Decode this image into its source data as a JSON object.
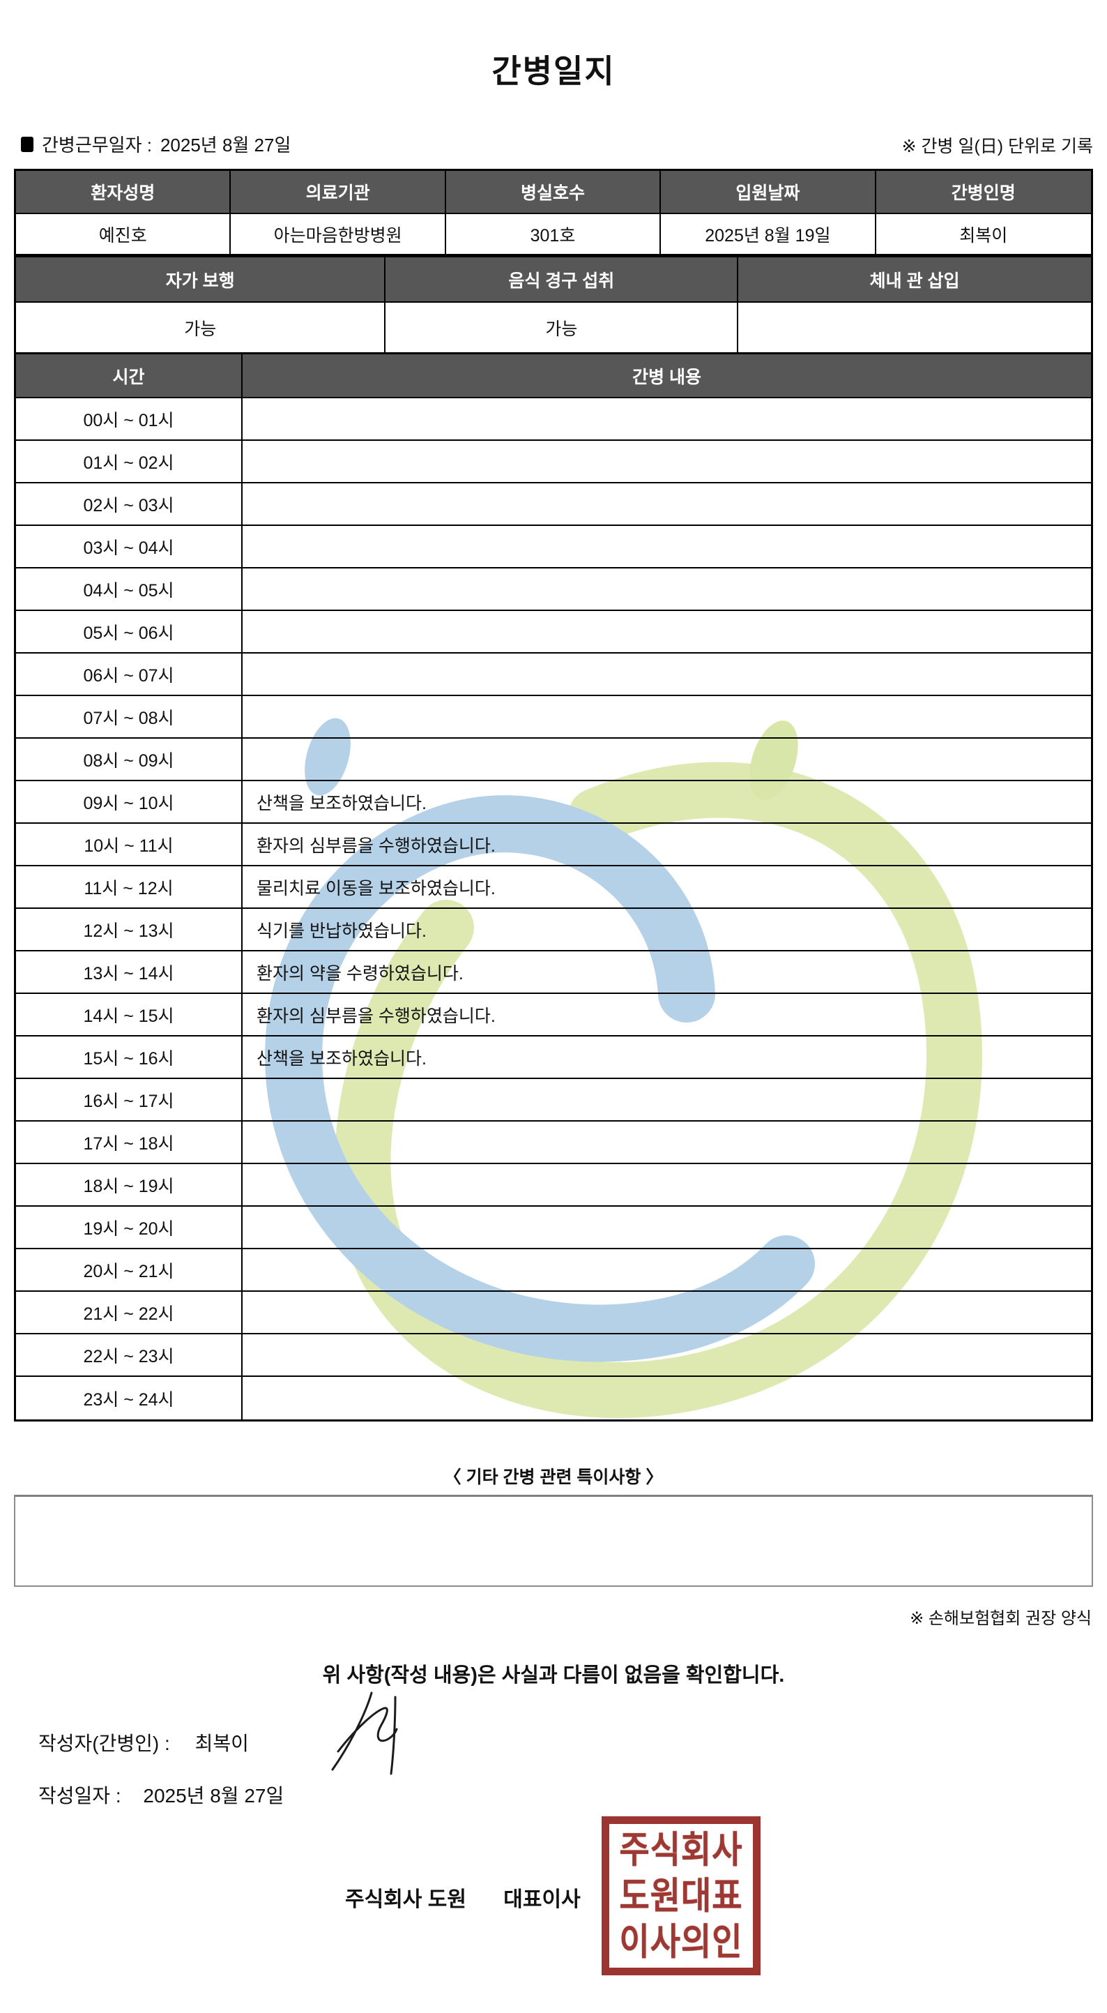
{
  "colors": {
    "header_bg": "#575757",
    "stamp_red": "#9e3832",
    "watermark_blue": "#b5d1e8",
    "watermark_green": "#dee9b2"
  },
  "header": {
    "title": "간병일지",
    "work_date_label": "간병근무일자  :",
    "work_date": "2025년 8월 27일",
    "unit_note": "※ 간병 일(日) 단위로 기록"
  },
  "patient_table": {
    "headers": [
      "환자성명",
      "의료기관",
      "병실호수",
      "입원날짜",
      "간병인명"
    ],
    "values": [
      "예진호",
      "아는마음한방병원",
      "301호",
      "2025년 8월 19일",
      "최복이"
    ]
  },
  "status_table": {
    "headers": [
      "자가 보행",
      "음식 경구 섭취",
      "체내 관 삽입"
    ],
    "values": [
      "가능",
      "가능",
      ""
    ]
  },
  "care_log": {
    "time_header": "시간",
    "content_header": "간병 내용",
    "rows": [
      {
        "time": "00시 ~ 01시",
        "content": ""
      },
      {
        "time": "01시 ~ 02시",
        "content": ""
      },
      {
        "time": "02시 ~ 03시",
        "content": ""
      },
      {
        "time": "03시 ~ 04시",
        "content": ""
      },
      {
        "time": "04시 ~ 05시",
        "content": ""
      },
      {
        "time": "05시 ~ 06시",
        "content": ""
      },
      {
        "time": "06시 ~ 07시",
        "content": ""
      },
      {
        "time": "07시 ~ 08시",
        "content": ""
      },
      {
        "time": "08시 ~ 09시",
        "content": ""
      },
      {
        "time": "09시 ~ 10시",
        "content": "산책을 보조하였습니다."
      },
      {
        "time": "10시 ~ 11시",
        "content": "환자의 심부름을 수행하였습니다."
      },
      {
        "time": "11시 ~ 12시",
        "content": "물리치료 이동을 보조하였습니다."
      },
      {
        "time": "12시 ~ 13시",
        "content": "식기를 반납하였습니다."
      },
      {
        "time": "13시 ~ 14시",
        "content": "환자의 약을 수령하였습니다."
      },
      {
        "time": "14시 ~ 15시",
        "content": "환자의 심부름을 수행하였습니다."
      },
      {
        "time": "15시 ~ 16시",
        "content": "산책을 보조하였습니다."
      },
      {
        "time": "16시 ~ 17시",
        "content": ""
      },
      {
        "time": "17시 ~ 18시",
        "content": ""
      },
      {
        "time": "18시 ~ 19시",
        "content": ""
      },
      {
        "time": "19시 ~ 20시",
        "content": ""
      },
      {
        "time": "20시 ~ 21시",
        "content": ""
      },
      {
        "time": "21시 ~ 22시",
        "content": ""
      },
      {
        "time": "22시 ~ 23시",
        "content": ""
      },
      {
        "time": "23시 ~ 24시",
        "content": ""
      }
    ]
  },
  "notes_section": {
    "heading": "〈 기타 간병 관련 특이사항 〉",
    "content": ""
  },
  "footer": {
    "recommend_note": "※ 손해보험협회 권장 양식",
    "confirmation": "위 사항(작성 내용)은 사실과 다름이 없음을 확인합니다.",
    "writer_label": "작성자(간병인) :",
    "writer_name": "최복이",
    "written_date_label": "작성일자 :",
    "written_date": "2025년 8월 27일",
    "company": "주식회사 도원",
    "ceo_title": "대표이사",
    "stamp": {
      "lines": [
        "주식회사",
        "도원대표",
        "이사의인"
      ]
    }
  }
}
